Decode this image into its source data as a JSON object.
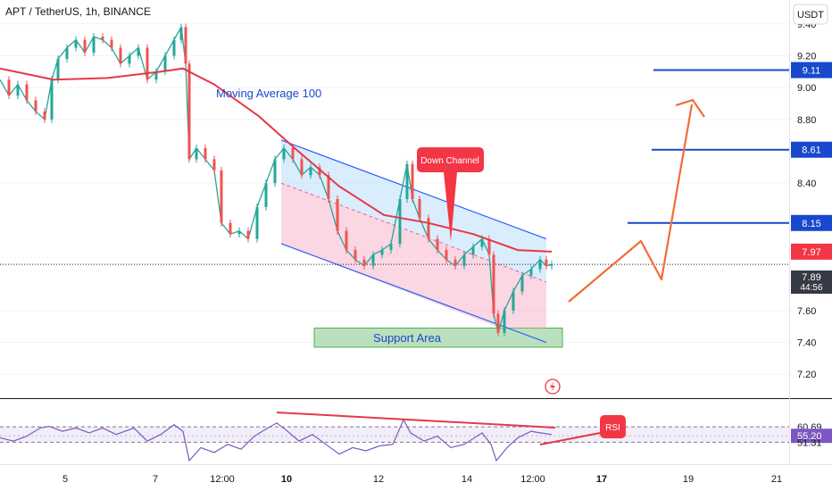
{
  "header": {
    "title": "APT / TetherUS, 1h, BINANCE",
    "currency_button": "USDT"
  },
  "chart_data": {
    "type": "candlestick",
    "title": "APT / TetherUS, 1h, BINANCE",
    "ylim": [
      7.05,
      9.55
    ],
    "y_ticks": [
      "9.40",
      "9.20",
      "9.00",
      "8.80",
      "8.40",
      "7.60",
      "7.40",
      "7.20"
    ],
    "x_ticks": [
      "5",
      "7",
      "12:00",
      "10",
      "12",
      "14",
      "12:00",
      "17",
      "19",
      "21"
    ],
    "price_labels": [
      {
        "text": "9.11",
        "value": 9.11,
        "color": "#1848cc"
      },
      {
        "text": "8.61",
        "value": 8.61,
        "color": "#1848cc"
      },
      {
        "text": "8.15",
        "value": 8.15,
        "color": "#1848cc"
      },
      {
        "text": "7.97",
        "value": 7.97,
        "color": "#f23645"
      },
      {
        "text": "7.89",
        "value": 7.89,
        "color": "#131722"
      }
    ],
    "countdown": "44:56",
    "annotations": {
      "moving_average": "Moving Average 100",
      "down_channel": "Down Channel",
      "support_area": "Support Area",
      "rsi": "RSI"
    },
    "levels": [
      9.11,
      8.61,
      8.15
    ],
    "support_zone": [
      7.37,
      7.49
    ],
    "price_path": [
      [
        0,
        9.05
      ],
      [
        10,
        8.95
      ],
      [
        20,
        9.02
      ],
      [
        30,
        8.92
      ],
      [
        40,
        8.85
      ],
      [
        50,
        8.8
      ],
      [
        58,
        9.05
      ],
      [
        65,
        9.18
      ],
      [
        75,
        9.25
      ],
      [
        85,
        9.3
      ],
      [
        95,
        9.22
      ],
      [
        105,
        9.32
      ],
      [
        115,
        9.3
      ],
      [
        125,
        9.25
      ],
      [
        135,
        9.15
      ],
      [
        145,
        9.2
      ],
      [
        155,
        9.25
      ],
      [
        165,
        9.05
      ],
      [
        175,
        9.1
      ],
      [
        185,
        9.2
      ],
      [
        195,
        9.3
      ],
      [
        203,
        9.38
      ],
      [
        208,
        9.15
      ],
      [
        212,
        8.55
      ],
      [
        220,
        8.62
      ],
      [
        230,
        8.55
      ],
      [
        240,
        8.48
      ],
      [
        248,
        8.15
      ],
      [
        258,
        8.08
      ],
      [
        268,
        8.1
      ],
      [
        278,
        8.05
      ],
      [
        288,
        8.25
      ],
      [
        298,
        8.4
      ],
      [
        308,
        8.55
      ],
      [
        318,
        8.62
      ],
      [
        328,
        8.55
      ],
      [
        338,
        8.45
      ],
      [
        348,
        8.5
      ],
      [
        358,
        8.45
      ],
      [
        368,
        8.3
      ],
      [
        378,
        8.1
      ],
      [
        388,
        7.98
      ],
      [
        398,
        7.92
      ],
      [
        408,
        7.88
      ],
      [
        418,
        7.95
      ],
      [
        428,
        7.98
      ],
      [
        438,
        8.02
      ],
      [
        448,
        8.3
      ],
      [
        456,
        8.52
      ],
      [
        462,
        8.3
      ],
      [
        470,
        8.18
      ],
      [
        480,
        8.05
      ],
      [
        490,
        7.98
      ],
      [
        500,
        7.92
      ],
      [
        510,
        7.88
      ],
      [
        520,
        7.95
      ],
      [
        530,
        8.0
      ],
      [
        540,
        8.05
      ],
      [
        548,
        7.95
      ],
      [
        553,
        7.58
      ],
      [
        558,
        7.46
      ],
      [
        565,
        7.6
      ],
      [
        575,
        7.72
      ],
      [
        585,
        7.82
      ],
      [
        595,
        7.86
      ],
      [
        605,
        7.92
      ],
      [
        612,
        7.88
      ],
      [
        618,
        7.89
      ]
    ],
    "ma100_path": [
      [
        0,
        9.12
      ],
      [
        60,
        9.05
      ],
      [
        120,
        9.06
      ],
      [
        180,
        9.1
      ],
      [
        205,
        9.12
      ],
      [
        240,
        9.02
      ],
      [
        290,
        8.82
      ],
      [
        330,
        8.62
      ],
      [
        380,
        8.38
      ],
      [
        430,
        8.2
      ],
      [
        480,
        8.15
      ],
      [
        530,
        8.08
      ],
      [
        580,
        7.98
      ],
      [
        618,
        7.97
      ]
    ],
    "rsi": {
      "ylim": [
        40,
        75
      ],
      "ticks": [
        "60.69",
        "55.20",
        "51.31"
      ],
      "path": [
        [
          0,
          54
        ],
        [
          15,
          52
        ],
        [
          30,
          55
        ],
        [
          45,
          60
        ],
        [
          55,
          61
        ],
        [
          70,
          58
        ],
        [
          85,
          60
        ],
        [
          100,
          57
        ],
        [
          115,
          60
        ],
        [
          130,
          56
        ],
        [
          150,
          60
        ],
        [
          165,
          52
        ],
        [
          180,
          56
        ],
        [
          195,
          62
        ],
        [
          205,
          58
        ],
        [
          212,
          40
        ],
        [
          225,
          48
        ],
        [
          240,
          45
        ],
        [
          255,
          50
        ],
        [
          270,
          47
        ],
        [
          285,
          55
        ],
        [
          300,
          60
        ],
        [
          310,
          63
        ],
        [
          320,
          59
        ],
        [
          335,
          52
        ],
        [
          350,
          56
        ],
        [
          365,
          50
        ],
        [
          380,
          44
        ],
        [
          395,
          48
        ],
        [
          410,
          46
        ],
        [
          425,
          49
        ],
        [
          440,
          50
        ],
        [
          452,
          65
        ],
        [
          460,
          57
        ],
        [
          475,
          52
        ],
        [
          490,
          55
        ],
        [
          505,
          48
        ],
        [
          520,
          50
        ],
        [
          540,
          57
        ],
        [
          550,
          50
        ],
        [
          556,
          40
        ],
        [
          568,
          48
        ],
        [
          580,
          54
        ],
        [
          595,
          58
        ],
        [
          605,
          57
        ],
        [
          618,
          56
        ]
      ]
    }
  }
}
